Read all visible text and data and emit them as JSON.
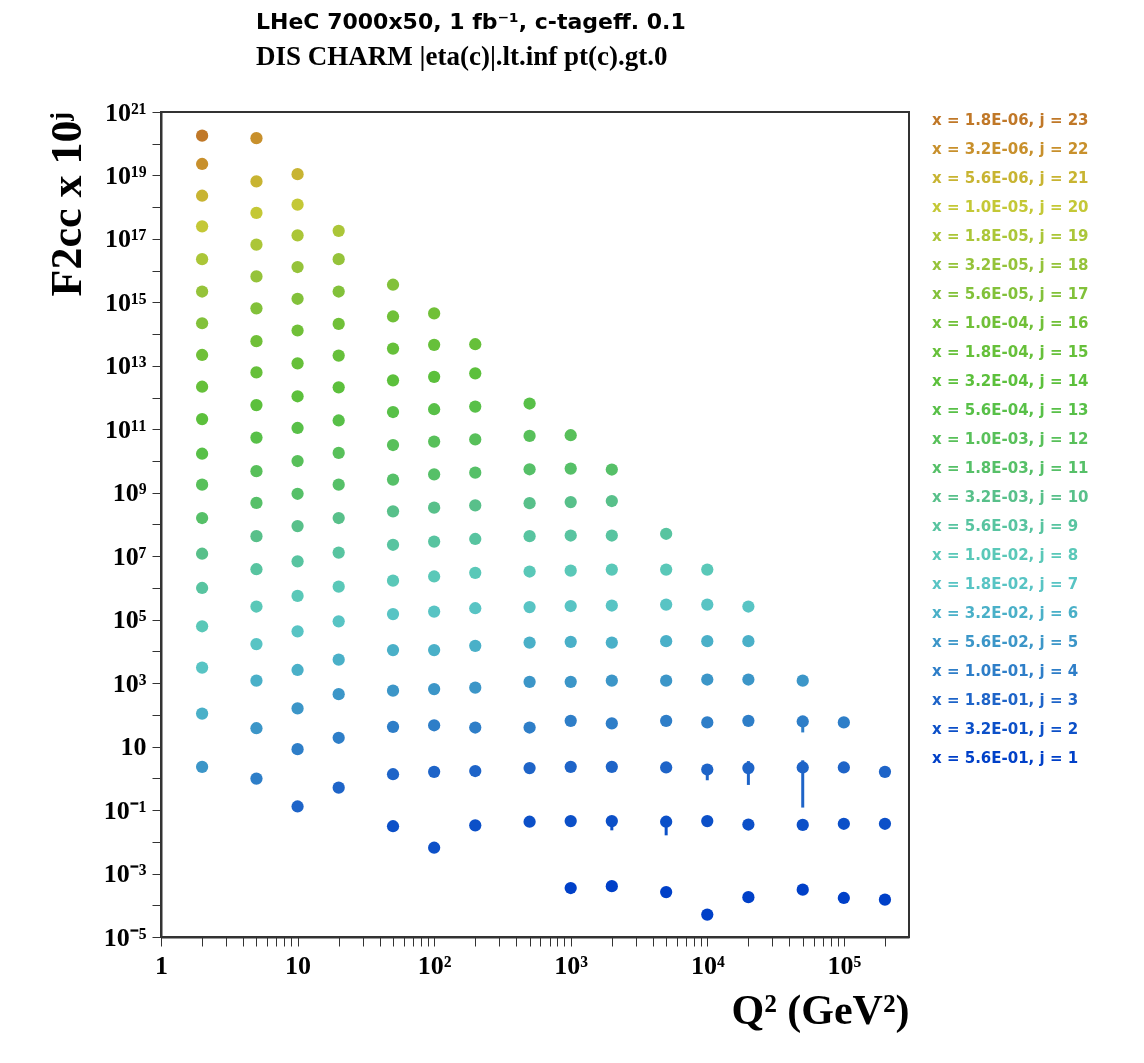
{
  "chart_data": {
    "type": "scatter",
    "title": "LHeC 7000x50, 1 fb⁻¹, c-tageff. 0.1",
    "subtitle": "DIS CHARM |eta(c)|.lt.inf pt(c).gt.0",
    "xlabel": "Q² (GeV²)",
    "ylabel": "F2cc x 10ʲ",
    "log": "xy",
    "marker": "circle",
    "legend": "right",
    "xlim": [
      1,
      300000
    ],
    "xticks": [
      1,
      {
        "value": 2,
        "label": null
      },
      {
        "value": 3,
        "label": null
      },
      {
        "value": 4,
        "label": null
      },
      {
        "value": 5,
        "label": null
      },
      {
        "value": 6,
        "label": null
      },
      {
        "value": 7,
        "label": null
      },
      {
        "value": 8,
        "label": null
      },
      {
        "value": 9,
        "label": null
      },
      10,
      {
        "value": 20,
        "label": null
      },
      {
        "value": 30,
        "label": null
      },
      {
        "value": 40,
        "label": null
      },
      {
        "value": 50,
        "label": null
      },
      {
        "value": 60,
        "label": null
      },
      {
        "value": 70,
        "label": null
      },
      {
        "value": 80,
        "label": null
      },
      {
        "value": 90,
        "label": null
      },
      {
        "value": 100,
        "label": "10²"
      },
      {
        "value": 200,
        "label": null
      },
      {
        "value": 300,
        "label": null
      },
      {
        "value": 400,
        "label": null
      },
      {
        "value": 500,
        "label": null
      },
      {
        "value": 600,
        "label": null
      },
      {
        "value": 700,
        "label": null
      },
      {
        "value": 800,
        "label": null
      },
      {
        "value": 900,
        "label": null
      },
      {
        "value": 1000,
        "label": "10³"
      },
      {
        "value": 2000,
        "label": null
      },
      {
        "value": 3000,
        "label": null
      },
      {
        "value": 4000,
        "label": null
      },
      {
        "value": 5000,
        "label": null
      },
      {
        "value": 6000,
        "label": null
      },
      {
        "value": 7000,
        "label": null
      },
      {
        "value": 8000,
        "label": null
      },
      {
        "value": 9000,
        "label": null
      },
      {
        "value": 10000,
        "label": "10⁴"
      },
      {
        "value": 20000,
        "label": null
      },
      {
        "value": 30000,
        "label": null
      },
      {
        "value": 40000,
        "label": null
      },
      {
        "value": 50000,
        "label": null
      },
      {
        "value": 60000,
        "label": null
      },
      {
        "value": 70000,
        "label": null
      },
      {
        "value": 80000,
        "label": null
      },
      {
        "value": 90000,
        "label": null
      },
      {
        "value": 100000,
        "label": "10⁵"
      },
      {
        "value": 200000,
        "label": null
      }
    ],
    "ylim": [
      1e-05,
      1e+21
    ],
    "yticks": [
      {
        "value": 1e+21,
        "label": "10²¹"
      },
      {
        "value": 1e+20,
        "label": null
      },
      {
        "value": 1e+19,
        "label": "10¹⁹"
      },
      {
        "value": 1e+18,
        "label": null
      },
      {
        "value": 1e+17,
        "label": "10¹⁷"
      },
      {
        "value": 1e+16,
        "label": null
      },
      {
        "value": 1000000000000000.0,
        "label": "10¹⁵"
      },
      {
        "value": 100000000000000.0,
        "label": null
      },
      {
        "value": 10000000000000.0,
        "label": "10¹³"
      },
      {
        "value": 1000000000000.0,
        "label": null
      },
      {
        "value": 100000000000.0,
        "label": "10¹¹"
      },
      {
        "value": 10000000000.0,
        "label": null
      },
      {
        "value": 1000000000.0,
        "label": "10⁹"
      },
      {
        "value": 100000000.0,
        "label": null
      },
      {
        "value": 10000000.0,
        "label": "10⁷"
      },
      {
        "value": 1000000.0,
        "label": null
      },
      {
        "value": 100000.0,
        "label": "10⁵"
      },
      {
        "value": 10000.0,
        "label": null
      },
      {
        "value": 1000,
        "label": "10³"
      },
      {
        "value": 100,
        "label": null
      },
      10,
      {
        "value": 1,
        "label": null
      },
      {
        "value": 0.1,
        "label": "10⁻¹"
      },
      {
        "value": 0.01,
        "label": null
      },
      {
        "value": 0.001,
        "label": "10⁻³"
      },
      {
        "value": 0.0001,
        "label": null
      },
      {
        "value": 1e-05,
        "label": "10⁻⁵"
      }
    ],
    "series": [
      {
        "name": "x = 1.8E-06, j = 23",
        "color": "#c07828",
        "x": [
          2
        ],
        "values": [
          1.8e+20
        ]
      },
      {
        "name": "x = 3.2E-06, j = 22",
        "color": "#c8902c",
        "x": [
          2,
          5
        ],
        "values": [
          2.3e+19,
          1.5e+20
        ]
      },
      {
        "name": "x = 5.6E-06, j = 21",
        "color": "#c8b432",
        "x": [
          2,
          5,
          10
        ],
        "values": [
          2.3e+18,
          6.5e+18,
          1.1e+19
        ]
      },
      {
        "name": "x = 1.0E-05, j = 20",
        "color": "#c4c836",
        "x": [
          2,
          5,
          10
        ],
        "values": [
          2.5e+17,
          6.6e+17,
          1.2e+18
        ]
      },
      {
        "name": "x = 1.8E-05, j = 19",
        "color": "#abc638",
        "x": [
          2,
          5,
          10,
          20
        ],
        "values": [
          2.3e+16,
          6.6e+16,
          1.3e+17,
          1.8e+17
        ]
      },
      {
        "name": "x = 3.2E-05, j = 18",
        "color": "#95c33a",
        "x": [
          2,
          5,
          10,
          20
        ],
        "values": [
          2200000000000000.0,
          6600000000000000.0,
          1.3e+16,
          2.3e+16
        ]
      },
      {
        "name": "x = 5.6E-05, j = 17",
        "color": "#82c13a",
        "x": [
          2,
          5,
          10,
          20,
          50
        ],
        "values": [
          220000000000000.0,
          650000000000000.0,
          1300000000000000.0,
          2200000000000000.0,
          3600000000000000.0
        ]
      },
      {
        "name": "x = 1.0E-04, j = 16",
        "color": "#70c038",
        "x": [
          2,
          5,
          10,
          20,
          50,
          100
        ],
        "values": [
          22000000000000.0,
          60000000000000.0,
          130000000000000.0,
          210000000000000.0,
          360000000000000.0,
          450000000000000.0
        ]
      },
      {
        "name": "x = 1.8E-04, j = 15",
        "color": "#66c03a",
        "x": [
          2,
          5,
          10,
          20,
          50,
          100,
          200
        ],
        "values": [
          2200000000000.0,
          6200000000000.0,
          12000000000000.0,
          21000000000000.0,
          35000000000000.0,
          46000000000000.0,
          48000000000000.0
        ]
      },
      {
        "name": "x = 3.2E-04, j = 14",
        "color": "#5cc03c",
        "x": [
          2,
          5,
          10,
          20,
          50,
          100,
          200
        ],
        "values": [
          210000000000.0,
          580000000000.0,
          1100000000000.0,
          2100000000000.0,
          3500000000000.0,
          4500000000000.0,
          5800000000000.0
        ]
      },
      {
        "name": "x = 5.6E-04, j = 13",
        "color": "#58c048",
        "x": [
          2,
          5,
          10,
          20,
          50,
          100,
          200,
          500
        ],
        "values": [
          17000000000.0,
          55000000000.0,
          110000000000.0,
          190000000000.0,
          350000000000.0,
          430000000000.0,
          520000000000.0,
          650000000000.0
        ]
      },
      {
        "name": "x = 1.0E-03, j = 12",
        "color": "#58c05a",
        "x": [
          2,
          5,
          10,
          20,
          50,
          100,
          200,
          500,
          1000
        ],
        "values": [
          1800000000.0,
          4800000000.0,
          10000000000.0,
          18000000000.0,
          32000000000.0,
          41000000000.0,
          48000000000.0,
          62000000000.0,
          65000000000.0
        ]
      },
      {
        "name": "x = 1.8E-03, j = 11",
        "color": "#56c068",
        "x": [
          2,
          5,
          10,
          20,
          50,
          100,
          200,
          500,
          1000,
          2000
        ],
        "values": [
          160000000.0,
          480000000.0,
          930000000.0,
          1800000000.0,
          2600000000.0,
          3800000000.0,
          4300000000.0,
          5500000000.0,
          5800000000.0,
          5400000000.0
        ]
      },
      {
        "name": "x = 3.2E-03, j = 10",
        "color": "#58c08a",
        "x": [
          2,
          5,
          10,
          20,
          50,
          100,
          200,
          500,
          1000,
          2000
        ],
        "values": [
          12000000.0,
          43000000.0,
          89000000.0,
          160000000.0,
          260000000.0,
          340000000.0,
          400000000.0,
          470000000.0,
          510000000.0,
          550000000.0
        ]
      },
      {
        "name": "x = 5.6E-03, j = 9",
        "color": "#58c4a0",
        "x": [
          2,
          5,
          10,
          20,
          50,
          100,
          200,
          500,
          1000,
          2000,
          5000
        ],
        "values": [
          1000000.0,
          3900000.0,
          6900000.0,
          13000000.0,
          23000000.0,
          29000000.0,
          35000000.0,
          43000000.0,
          45000000.0,
          45000000.0,
          51000000.0
        ]
      },
      {
        "name": "x = 1.0E-02, j = 8",
        "color": "#5ac8b8",
        "x": [
          2,
          5,
          10,
          20,
          50,
          100,
          200,
          500,
          1000,
          2000,
          5000,
          10000
        ],
        "values": [
          62000.0,
          260000.0,
          560000.0,
          1100000.0,
          1700000.0,
          2300000.0,
          3000000.0,
          3300000.0,
          3500000.0,
          3800000.0,
          3800000.0,
          3800000.0
        ]
      },
      {
        "name": "x = 1.8E-02, j = 7",
        "color": "#58c4c4",
        "x": [
          2,
          5,
          10,
          20,
          50,
          100,
          200,
          500,
          1000,
          2000,
          5000,
          10000,
          20000
        ],
        "values": [
          3100.0,
          17000.0,
          43000.0,
          89000.0,
          150000.0,
          180000.0,
          230000.0,
          250000.0,
          270000.0,
          280000.0,
          300000.0,
          300000.0,
          260000.0
        ]
      },
      {
        "name": "x = 3.2E-02, j = 6",
        "color": "#4ab0c8",
        "x": [
          2,
          5,
          10,
          20,
          50,
          100,
          200,
          500,
          1000,
          2000,
          5000,
          10000,
          20000
        ],
        "values": [
          110,
          1200,
          2600,
          5500,
          11000.0,
          11000.0,
          15000.0,
          19000.0,
          20000.0,
          19000.0,
          21000.0,
          21000.0,
          21000.0
        ]
      },
      {
        "name": "x = 5.6E-02, j = 5",
        "color": "#3c96c8",
        "x": [
          2,
          5,
          10,
          20,
          50,
          100,
          200,
          500,
          1000,
          2000,
          5000,
          10000,
          20000,
          50000
        ],
        "values": [
          2.3,
          38,
          160,
          450,
          580,
          650,
          720,
          1100,
          1100,
          1200,
          1200,
          1300,
          1300,
          1200
        ]
      },
      {
        "name": "x = 1.0E-01, j = 4",
        "color": "#2e7ec8",
        "x": [
          5,
          10,
          20,
          50,
          100,
          200,
          500,
          1000,
          2000,
          5000,
          10000,
          20000,
          50000,
          100000
        ],
        "values": [
          0.98,
          8.3,
          19,
          42,
          47,
          40,
          40,
          65,
          54,
          65,
          58,
          65,
          62,
          58
        ],
        "errors": [
          null,
          null,
          null,
          null,
          null,
          null,
          null,
          null,
          null,
          null,
          null,
          null,
          [
            28,
            62
          ],
          null
        ]
      },
      {
        "name": "x = 1.8E-01, j = 3",
        "color": "#1e64c8",
        "x": [
          10,
          20,
          50,
          100,
          200,
          500,
          1000,
          2000,
          5000,
          10000,
          20000,
          50000,
          100000,
          200000
        ],
        "values": [
          0.13,
          0.51,
          1.35,
          1.6,
          1.7,
          2.1,
          2.3,
          2.3,
          2.2,
          1.9,
          2.1,
          2.2,
          2.2,
          1.6
        ],
        "errors": [
          null,
          null,
          null,
          null,
          null,
          null,
          null,
          null,
          null,
          [
            0.87,
            1.9
          ],
          [
            0.62,
            3.5
          ],
          [
            0.12,
            3.7
          ],
          null,
          null
        ]
      },
      {
        "name": "x = 3.2E-01, j = 2",
        "color": "#0c50c8",
        "x": [
          50,
          100,
          200,
          500,
          1000,
          2000,
          5000,
          10000,
          20000,
          50000,
          100000,
          200000
        ],
        "values": [
          0.031,
          0.0065,
          0.033,
          0.043,
          0.045,
          0.045,
          0.043,
          0.045,
          0.035,
          0.034,
          0.037,
          0.037
        ],
        "errors": [
          null,
          null,
          null,
          null,
          null,
          [
            0.023,
            0.045
          ],
          [
            0.016,
            0.043
          ],
          null,
          null,
          null,
          null,
          null
        ]
      },
      {
        "name": "x = 5.6E-01, j = 1",
        "color": "#0040c8",
        "x": [
          1000,
          2000,
          5000,
          10000,
          20000,
          50000,
          100000,
          200000
        ],
        "values": [
          0.00035,
          0.0004,
          0.00026,
          5.1e-05,
          0.00018,
          0.00031,
          0.00017,
          0.00015
        ]
      }
    ]
  }
}
